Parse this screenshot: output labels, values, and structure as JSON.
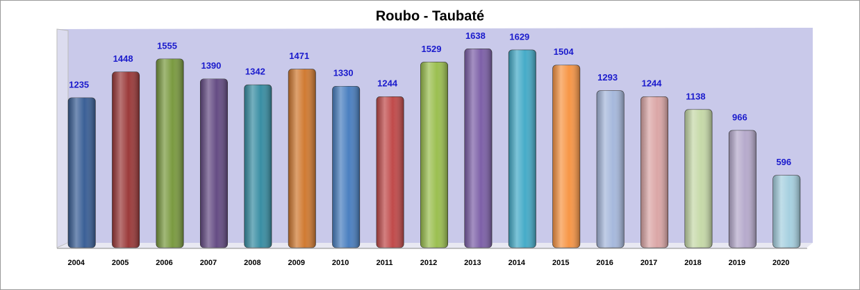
{
  "chart_data": {
    "type": "bar",
    "title": "Roubo - Taubaté",
    "categories": [
      "2004",
      "2005",
      "2006",
      "2007",
      "2008",
      "2009",
      "2010",
      "2011",
      "2012",
      "2013",
      "2014",
      "2015",
      "2016",
      "2017",
      "2018",
      "2019",
      "2020"
    ],
    "values": [
      1235,
      1448,
      1555,
      1390,
      1342,
      1471,
      1330,
      1244,
      1529,
      1638,
      1629,
      1504,
      1293,
      1244,
      1138,
      966,
      596
    ],
    "colors": [
      "#3a5f96",
      "#9b3a3a",
      "#7a9a40",
      "#654c84",
      "#398ea3",
      "#d07a32",
      "#4a7fc0",
      "#c04a4a",
      "#9bbf50",
      "#7d60a8",
      "#45abc8",
      "#f79646",
      "#a6b8dc",
      "#dba6a6",
      "#c6d9a8",
      "#b6aacc",
      "#a6d0e0"
    ],
    "ylim": [
      0,
      1800
    ]
  }
}
